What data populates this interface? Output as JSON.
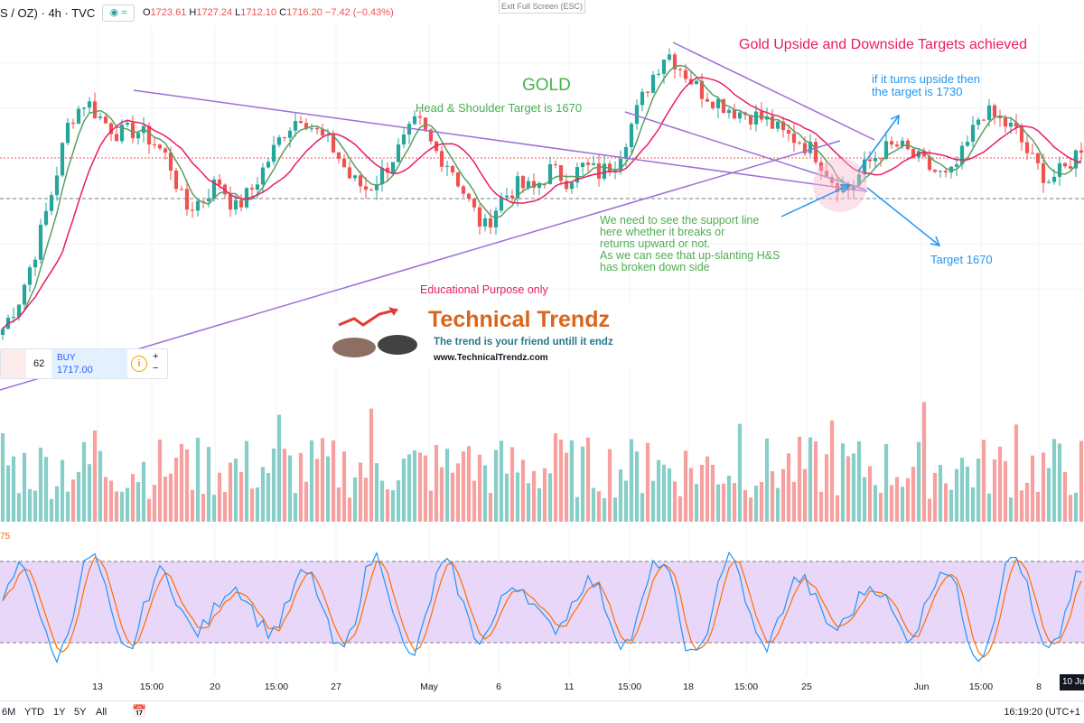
{
  "header": {
    "symbol": "S / OZ)  ·  4h  ·  TVC",
    "pill": "◉ ≈",
    "open_label": "O",
    "open": "1723.61",
    "high_label": "H",
    "high": "1727.24",
    "low_label": "L",
    "low": "1712.10",
    "close_label": "C",
    "close": "1716.20",
    "change": "−7.42 (−0.43%)"
  },
  "exit_fullscreen": "Exit Full Screen (ESC)",
  "annotations": {
    "title_right": "Gold Upside and Downside Targets achieved",
    "gold": "GOLD",
    "hs_target": "Head & Shoulder Target is 1670",
    "upside_l1": "if it turns upside then",
    "upside_l2": "the target is 1730",
    "support_l1": "We need to see the support line",
    "support_l2": "here whether it breaks or",
    "support_l3": "returns upward or not.",
    "support_l4": "As we can see that up-slanting H&S",
    "support_l5": "has broken down side",
    "target_1670": "Target 1670",
    "edu": "Educational Purpose only"
  },
  "logo": {
    "brand": "Technical Trendz",
    "tagline": "The trend is your friend untill it endz",
    "url": "www.TechnicalTrendz.com"
  },
  "order_panel": {
    "qty": "62",
    "buy_label": "BUY",
    "buy_price": "1717.00",
    "info": "i",
    "plus": "+",
    "minus": "−"
  },
  "bottom_bar": {
    "ranges": [
      "6M",
      "YTD",
      "1Y",
      "5Y",
      "All"
    ],
    "clock": "16:19:20 (UTC+1"
  },
  "stoch_label": "75",
  "date_badge": "10 Ju",
  "colors": {
    "up": "#26a69a",
    "down": "#ef5350",
    "ma_fast": "#5b9e63",
    "ma_slow": "#e91e63",
    "trend": "#9c6fd6",
    "stoch_k": "#2196f3",
    "stoch_d": "#ff6d00",
    "stoch_band": "#e1c9f7"
  },
  "chart_data": {
    "type": "candlestick",
    "x_ticks": [
      "13",
      "15:00",
      "20",
      "15:00",
      "27",
      "May",
      "6",
      "11",
      "15:00",
      "18",
      "15:00",
      "25",
      "Jun",
      "15:00",
      "8"
    ],
    "price_path": [
      1630,
      1645,
      1670,
      1700,
      1735,
      1745,
      1735,
      1728,
      1730,
      1725,
      1715,
      1690,
      1695,
      1705,
      1690,
      1700,
      1715,
      1730,
      1738,
      1728,
      1720,
      1705,
      1700,
      1710,
      1722,
      1735,
      1720,
      1712,
      1695,
      1680,
      1695,
      1702,
      1700,
      1710,
      1705,
      1712,
      1708,
      1715,
      1735,
      1755,
      1770,
      1760,
      1750,
      1745,
      1740,
      1738,
      1735,
      1728,
      1725,
      1718,
      1705,
      1700,
      1712,
      1720,
      1722,
      1716,
      1710,
      1705,
      1720,
      1740,
      1735,
      1730,
      1715,
      1705,
      1710,
      1722
    ],
    "trendline_label": "up-slanting H&S",
    "stochastic": {
      "upper": 80,
      "lower": 20,
      "label": "75"
    }
  }
}
